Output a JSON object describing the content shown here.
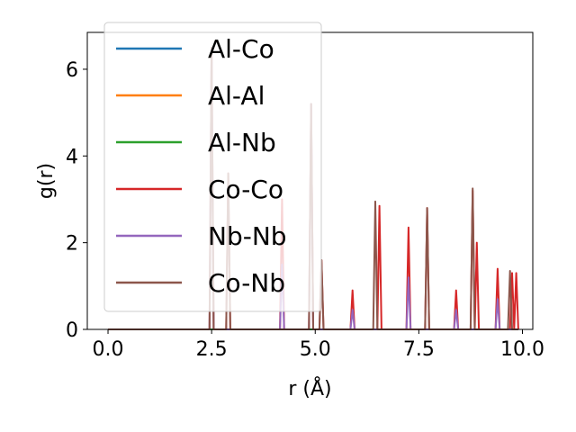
{
  "chart_data": {
    "type": "line",
    "xlabel": "r (Å)",
    "ylabel": "g(r)",
    "xlim": [
      -0.5,
      10.25
    ],
    "ylim": [
      0,
      6.85
    ],
    "xticks": [
      0.0,
      2.5,
      5.0,
      7.5,
      10.0
    ],
    "xtick_labels": [
      "0.0",
      "2.5",
      "5.0",
      "7.5",
      "10.0"
    ],
    "yticks": [
      0,
      2,
      4,
      6
    ],
    "ytick_labels": [
      "0",
      "2",
      "4",
      "6"
    ],
    "grid": false,
    "legend_position": "top-left",
    "series": [
      {
        "name": "Al-Co",
        "color": "#1f77b4",
        "peaks": []
      },
      {
        "name": "Al-Al",
        "color": "#ff7f0e",
        "peaks": []
      },
      {
        "name": "Al-Nb",
        "color": "#2ca02c",
        "peaks": []
      },
      {
        "name": "Co-Co",
        "color": "#d62728",
        "peaks": [
          {
            "x": 2.5,
            "y": 6.5
          },
          {
            "x": 2.9,
            "y": 3.6
          },
          {
            "x": 4.2,
            "y": 3.0
          },
          {
            "x": 4.9,
            "y": 5.2
          },
          {
            "x": 5.15,
            "y": 1.6
          },
          {
            "x": 5.9,
            "y": 0.9
          },
          {
            "x": 6.55,
            "y": 2.85
          },
          {
            "x": 7.25,
            "y": 2.35
          },
          {
            "x": 7.7,
            "y": 2.8
          },
          {
            "x": 8.4,
            "y": 0.9
          },
          {
            "x": 8.8,
            "y": 3.2
          },
          {
            "x": 8.9,
            "y": 2.0
          },
          {
            "x": 9.4,
            "y": 1.4
          },
          {
            "x": 9.75,
            "y": 1.3
          },
          {
            "x": 9.85,
            "y": 1.3
          }
        ]
      },
      {
        "name": "Nb-Nb",
        "color": "#9467bd",
        "peaks": [
          {
            "x": 2.5,
            "y": 6.5
          },
          {
            "x": 4.2,
            "y": 1.5
          },
          {
            "x": 4.9,
            "y": 5.2
          },
          {
            "x": 5.9,
            "y": 0.45
          },
          {
            "x": 7.25,
            "y": 1.2
          },
          {
            "x": 8.4,
            "y": 0.45
          },
          {
            "x": 9.4,
            "y": 0.7
          }
        ]
      },
      {
        "name": "Co-Nb",
        "color": "#8c564b",
        "peaks": [
          {
            "x": 2.5,
            "y": 6.5
          },
          {
            "x": 2.9,
            "y": 3.6
          },
          {
            "x": 4.9,
            "y": 5.2
          },
          {
            "x": 5.15,
            "y": 1.6
          },
          {
            "x": 6.45,
            "y": 2.95
          },
          {
            "x": 7.7,
            "y": 2.8
          },
          {
            "x": 8.8,
            "y": 3.25
          },
          {
            "x": 9.7,
            "y": 1.35
          }
        ]
      }
    ]
  }
}
